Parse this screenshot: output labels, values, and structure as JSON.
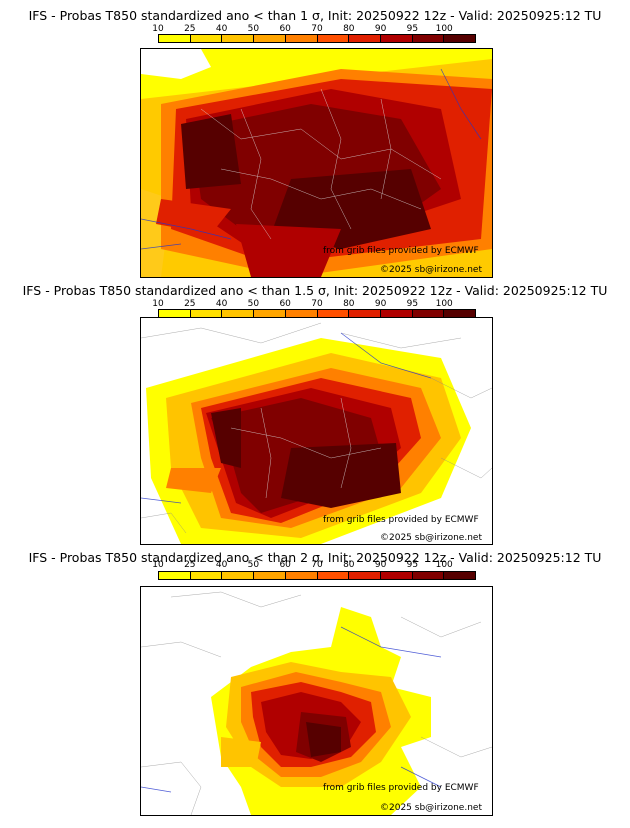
{
  "colorbar": {
    "ticks": [
      "10",
      "25",
      "40",
      "50",
      "60",
      "70",
      "80",
      "90",
      "95",
      "100"
    ],
    "colors": [
      "#ffff00",
      "#ffe000",
      "#ffc400",
      "#ffa500",
      "#ff8000",
      "#ff5000",
      "#e02000",
      "#b00000",
      "#800000",
      "#560000"
    ]
  },
  "panels": [
    {
      "title": "IFS - Probas T850  standardized ano < than 1 σ, Init: 20250922 12z - Valid: 20250925:12 TU",
      "credit_ecmwf": "from grib files provided by ECMWF",
      "credit_site": "©2025 sb@irizone.net"
    },
    {
      "title": "IFS - Probas T850  standardized ano < than 1.5 σ, Init: 20250922 12z - Valid: 20250925:12 TU",
      "credit_ecmwf": "from grib files provided by ECMWF",
      "credit_site": "©2025 sb@irizone.net"
    },
    {
      "title": "IFS - Probas T850  standardized ano < than 2 σ, Init: 20250922 12z - Valid: 20250925:12 TU",
      "credit_ecmwf": "from grib files provided by ECMWF",
      "credit_site": "©2025 sb@irizone.net"
    }
  ]
}
